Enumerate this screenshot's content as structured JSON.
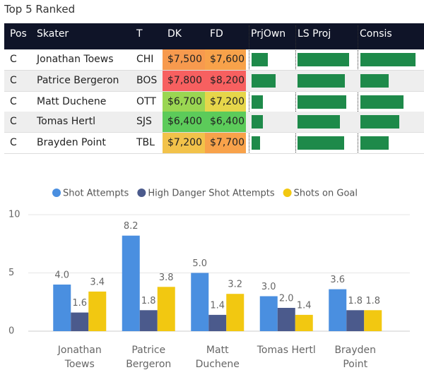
{
  "table": {
    "title": "Top 5 Ranked",
    "columns": [
      "Pos",
      "Skater",
      "T",
      "DK",
      "FD",
      "PrjOwn",
      "LS Proj",
      "Consis"
    ],
    "rows": [
      {
        "pos": "C",
        "skater": "Jonathan Toews",
        "team": "CHI",
        "dk": "$7,500",
        "dk_color": "#f79a4e",
        "fd": "$7,600",
        "fd_color": "#f8a24a",
        "prjown": 38,
        "ls_proj": 87,
        "consis": 91
      },
      {
        "pos": "C",
        "skater": "Patrice Bergeron",
        "team": "BOS",
        "dk": "$7,800",
        "dk_color": "#f76060",
        "fd": "$8,200",
        "fd_color": "#f76060",
        "prjown": 56,
        "ls_proj": 80,
        "consis": 47
      },
      {
        "pos": "C",
        "skater": "Matt Duchene",
        "team": "OTT",
        "dk": "$6,700",
        "dk_color": "#9ad652",
        "fd": "$7,200",
        "fd_color": "#e6d64a",
        "prjown": 27,
        "ls_proj": 82,
        "consis": 71
      },
      {
        "pos": "C",
        "skater": "Tomas Hertl",
        "team": "SJS",
        "dk": "$6,400",
        "dk_color": "#5ccb5a",
        "fd": "$6,400",
        "fd_color": "#5ccb5a",
        "prjown": 27,
        "ls_proj": 71,
        "consis": 64
      },
      {
        "pos": "C",
        "skater": "Brayden Point",
        "team": "TBL",
        "dk": "$7,200",
        "dk_color": "#f2c24a",
        "fd": "$7,700",
        "fd_color": "#f8a24a",
        "prjown": 20,
        "ls_proj": 78,
        "consis": 47
      }
    ],
    "bar_color": "#1e8a4a"
  },
  "chart_data": {
    "type": "bar",
    "categories": [
      "Jonathan Toews",
      "Patrice Bergeron",
      "Matt Duchene",
      "Tomas Hertl",
      "Brayden Point"
    ],
    "series": [
      {
        "name": "Shot Attempts",
        "color": "#4a8fe0",
        "values": [
          4.0,
          8.2,
          5.0,
          3.0,
          3.6
        ],
        "value_labels": [
          "4.0",
          "8.2",
          "5.0",
          "3.0",
          "3.6"
        ]
      },
      {
        "name": "High Danger Shot Attempts",
        "color": "#4b5a8c",
        "values": [
          1.6,
          1.8,
          1.4,
          2.0,
          1.8
        ],
        "value_labels": [
          "1.6",
          "1.8",
          "1.4",
          "2.0",
          "1.8"
        ]
      },
      {
        "name": "Shots on Goal",
        "color": "#f2c811",
        "values": [
          3.4,
          3.8,
          3.2,
          1.4,
          1.8
        ],
        "value_labels": [
          "3.4",
          "3.8",
          "3.2",
          "1.4",
          "1.8"
        ]
      }
    ],
    "ylim": [
      0,
      10
    ],
    "yticks": [
      0,
      5,
      10
    ],
    "grid": true,
    "legend": "top"
  }
}
